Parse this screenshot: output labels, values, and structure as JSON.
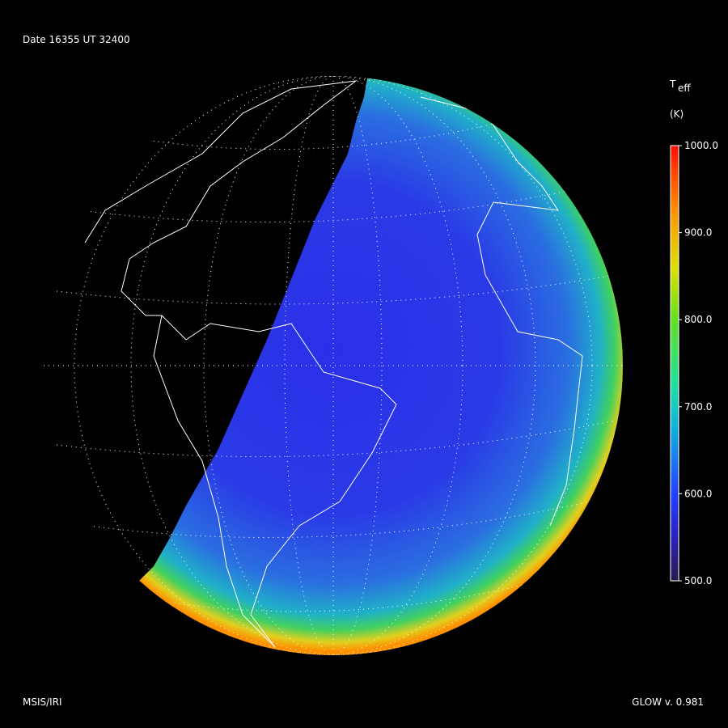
{
  "header": {
    "title": "Date 16355  UT 32400"
  },
  "colorbar": {
    "title": "T",
    "title_sub": "eff",
    "unit": "(K)",
    "range": [
      500,
      1000
    ],
    "ticks": [
      {
        "value": 500,
        "label": "500.0"
      },
      {
        "value": 600,
        "label": "600.0"
      },
      {
        "value": 700,
        "label": "700.0"
      },
      {
        "value": 800,
        "label": "800.0"
      },
      {
        "value": 900,
        "label": "900.0"
      },
      {
        "value": 1000,
        "label": "1000.0"
      }
    ]
  },
  "footer": {
    "left": "MSIS/IRI",
    "right": "GLOW v. 0.981"
  }
}
